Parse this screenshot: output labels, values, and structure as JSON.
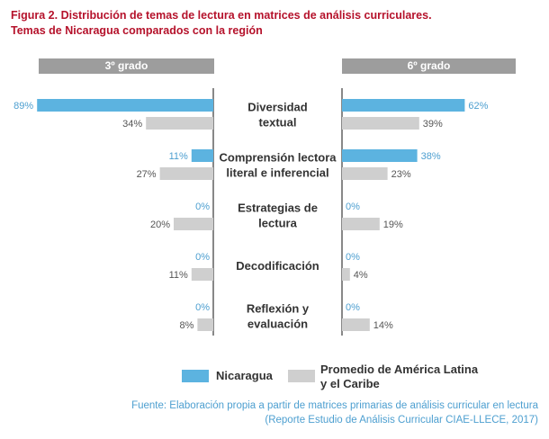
{
  "title": "Figura 2. Distribución de temas de lectura en matrices de análisis curriculares.",
  "subtitle": "Temas de Nicaragua comparados con la región",
  "colors": {
    "nicaragua": "#5cb3e0",
    "region": "#cfcfcf",
    "title": "#b5122b",
    "header": "#9d9d9d",
    "source": "#4d9fd0"
  },
  "chart_data": {
    "type": "bar",
    "orientation": "horizontal-butterfly",
    "panels": [
      {
        "label": "3º grado",
        "side": "left"
      },
      {
        "label": "6º grado",
        "side": "right"
      }
    ],
    "categories": [
      [
        "Diversidad",
        "textual"
      ],
      [
        "Comprensión lectora",
        "literal e inferencial"
      ],
      [
        "Estrategias de",
        "lectura"
      ],
      [
        "Decodificación"
      ],
      [
        "Reflexión y",
        "evaluación"
      ]
    ],
    "series": [
      {
        "name": "Nicaragua",
        "grade3": [
          89,
          11,
          0,
          0,
          0
        ],
        "grade6": [
          62,
          38,
          0,
          0,
          0
        ]
      },
      {
        "name": "Promedio de América Latina y el Caribe",
        "grade3": [
          34,
          27,
          20,
          11,
          8
        ],
        "grade6": [
          39,
          23,
          19,
          4,
          14
        ]
      }
    ],
    "value_suffix": "%",
    "xlim": [
      0,
      100
    ]
  },
  "legend": {
    "nicaragua": "Nicaragua",
    "region_line1": "Promedio de América Latina",
    "region_line2": "y el Caribe"
  },
  "source": {
    "line1": "Fuente: Elaboración propia a partir de matrices primarias de análisis curricular en lectura",
    "line2": "(Reporte Estudio de Análisis Curricular CIAE-LLECE, 2017)"
  }
}
